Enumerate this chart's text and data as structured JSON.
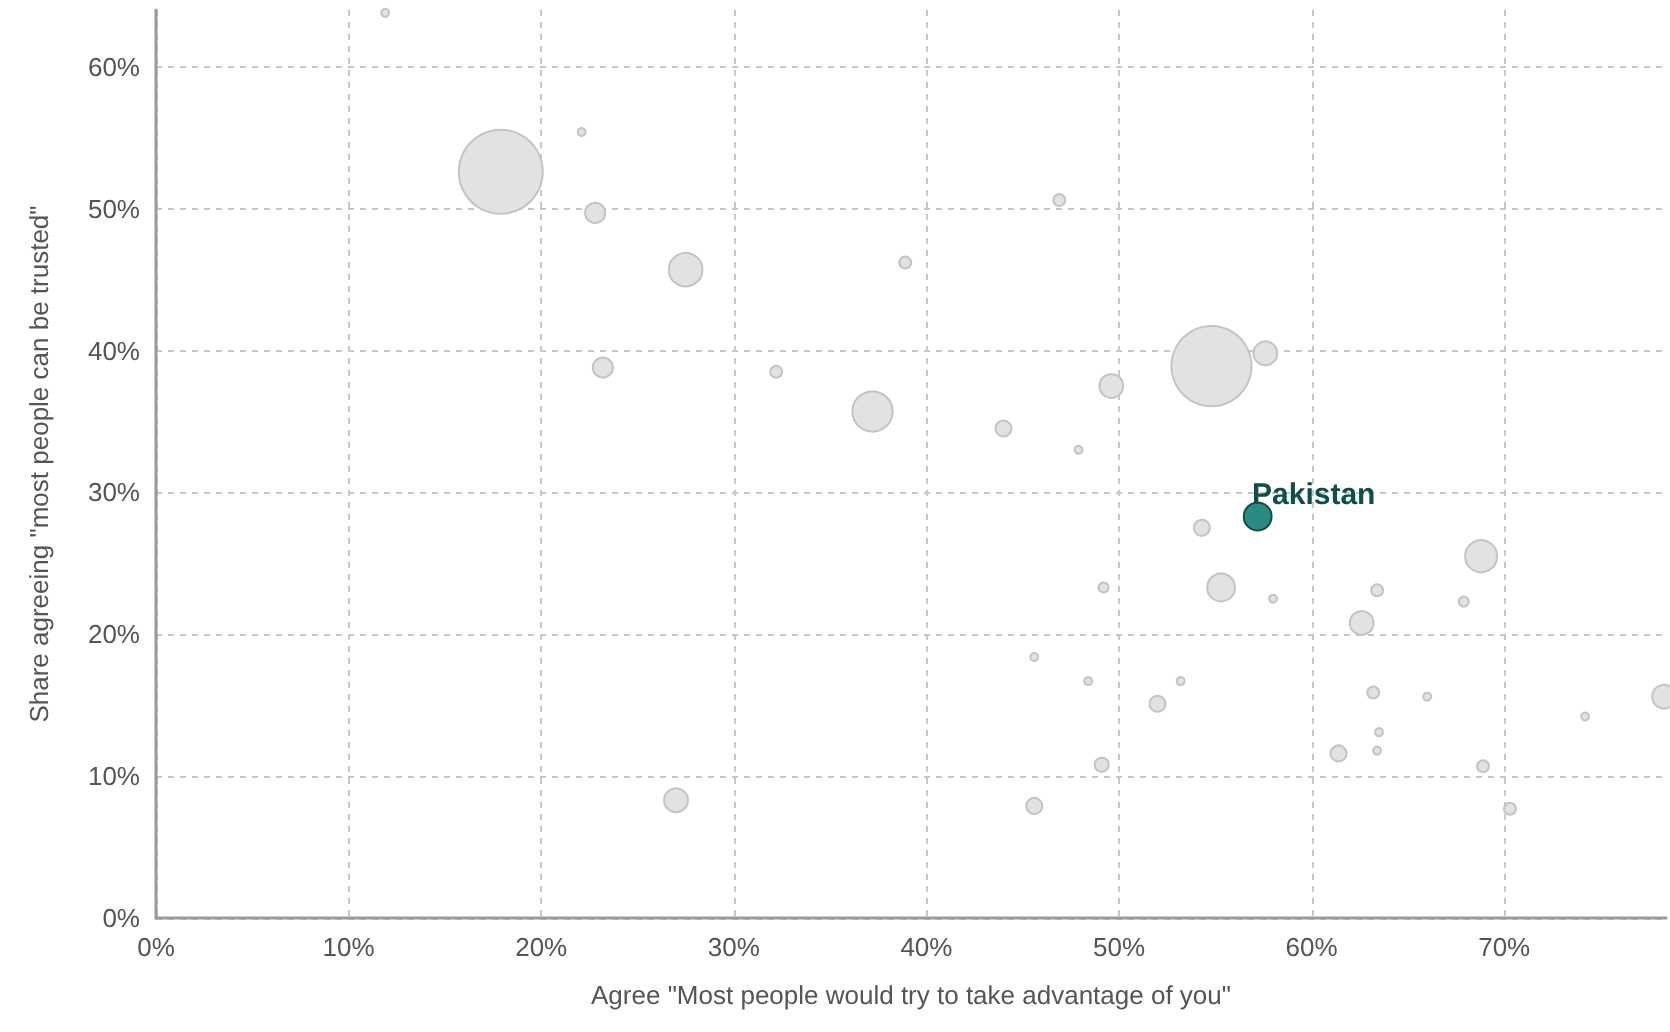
{
  "chart_data": {
    "type": "bubble",
    "xlabel": "Agree \"Most people would try to take advantage of you\"",
    "ylabel": "Share agreeing \"most people can be trusted\"",
    "xlim": [
      0,
      78.4
    ],
    "ylim": [
      0,
      64
    ],
    "xticks": [
      {
        "value": 0,
        "label": "0%"
      },
      {
        "value": 10,
        "label": "10%"
      },
      {
        "value": 20,
        "label": "20%"
      },
      {
        "value": 30,
        "label": "30%"
      },
      {
        "value": 40,
        "label": "40%"
      },
      {
        "value": 50,
        "label": "50%"
      },
      {
        "value": 60,
        "label": "60%"
      },
      {
        "value": 70,
        "label": "70%"
      }
    ],
    "yticks": [
      {
        "value": 0,
        "label": "0%"
      },
      {
        "value": 10,
        "label": "10%"
      },
      {
        "value": 20,
        "label": "20%"
      },
      {
        "value": 30,
        "label": "30%"
      },
      {
        "value": 40,
        "label": "40%"
      },
      {
        "value": 50,
        "label": "50%"
      },
      {
        "value": 60,
        "label": "60%"
      }
    ],
    "grid": true,
    "marker": "circle",
    "series": [
      {
        "color": "#e2e2e2",
        "x": [
          11.9,
          17.9,
          22.1,
          22.8,
          27.5,
          23.2,
          32.2,
          37.2,
          38.9,
          46.9,
          44.0,
          47.9,
          49.6,
          54.8,
          57.6,
          27.0,
          54.3,
          49.2,
          55.3,
          58.0,
          63.4,
          68.8,
          67.9,
          62.6,
          45.6,
          48.4,
          53.2,
          52.0,
          63.2,
          66.0,
          78.3,
          74.2,
          63.5,
          61.4,
          63.4,
          49.1,
          68.9,
          45.6,
          70.3
        ],
        "values": [
          63.8,
          52.6,
          55.4,
          49.7,
          45.7,
          38.8,
          38.5,
          35.7,
          46.2,
          50.6,
          34.5,
          33.0,
          37.5,
          38.9,
          39.8,
          8.3,
          27.5,
          23.3,
          23.3,
          22.5,
          23.1,
          25.5,
          22.3,
          20.8,
          18.4,
          16.7,
          16.7,
          15.1,
          15.9,
          15.6,
          15.6,
          14.2,
          13.1,
          11.6,
          11.8,
          10.8,
          10.7,
          7.9,
          7.7
        ],
        "sizes": [
          0.009,
          1,
          0.009,
          0.057,
          0.16,
          0.057,
          0.02,
          0.23,
          0.02,
          0.02,
          0.036,
          0.009,
          0.08,
          0.91,
          0.08,
          0.08,
          0.036,
          0.014,
          0.11,
          0.009,
          0.02,
          0.145,
          0.014,
          0.08,
          0.009,
          0.009,
          0.009,
          0.036,
          0.02,
          0.009,
          0.08,
          0.009,
          0.009,
          0.036,
          0.009,
          0.028,
          0.02,
          0.036,
          0.02
        ]
      },
      {
        "name": "Pakistan",
        "color": "#2b8a82",
        "x": [
          57.2
        ],
        "values": [
          28.3
        ],
        "sizes": [
          0.11
        ]
      }
    ]
  }
}
